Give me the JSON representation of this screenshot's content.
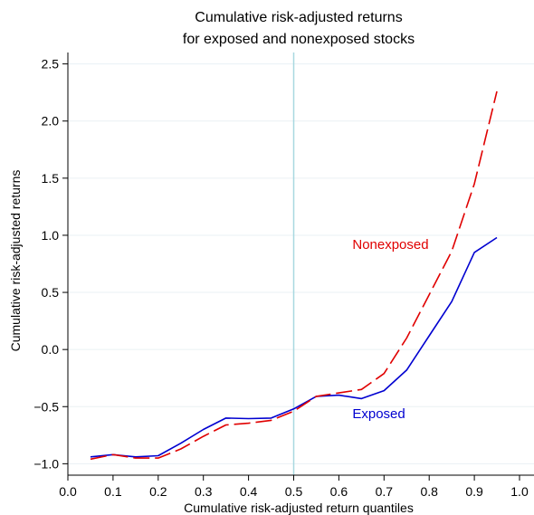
{
  "chart_data": {
    "type": "line",
    "title_lines": [
      "Cumulative risk-adjusted returns",
      "for exposed and nonexposed stocks"
    ],
    "xlabel": "Cumulative risk-adjusted return quantiles",
    "ylabel": "Cumulative risk-adjusted returns",
    "xlim": [
      0.0,
      1.0
    ],
    "ylim": [
      -1.1,
      2.6
    ],
    "xticks": [
      "0.0",
      "0.1",
      "0.2",
      "0.3",
      "0.4",
      "0.5",
      "0.6",
      "0.7",
      "0.8",
      "0.9",
      "1.0"
    ],
    "yticks": [
      "-1.0",
      "-0.5",
      "0.0",
      "0.5",
      "1.0",
      "1.5",
      "2.0",
      "2.5"
    ],
    "grid": true,
    "reference_line": {
      "x": 0.5,
      "color": "#a8d8e0"
    },
    "series": [
      {
        "name": "Exposed",
        "color": "#0000d0",
        "dash": "solid",
        "x": [
          0.05,
          0.1,
          0.15,
          0.2,
          0.25,
          0.3,
          0.35,
          0.4,
          0.45,
          0.5,
          0.55,
          0.6,
          0.65,
          0.7,
          0.75,
          0.8,
          0.85,
          0.9,
          0.95
        ],
        "y": [
          -0.94,
          -0.92,
          -0.94,
          -0.93,
          -0.82,
          -0.7,
          -0.6,
          -0.605,
          -0.6,
          -0.52,
          -0.41,
          -0.4,
          -0.43,
          -0.36,
          -0.18,
          0.12,
          0.42,
          0.85,
          0.98
        ]
      },
      {
        "name": "Nonexposed",
        "color": "#e00000",
        "dash": "dashed",
        "x": [
          0.05,
          0.1,
          0.15,
          0.2,
          0.25,
          0.3,
          0.35,
          0.4,
          0.45,
          0.5,
          0.55,
          0.6,
          0.65,
          0.7,
          0.75,
          0.8,
          0.85,
          0.9,
          0.95
        ],
        "y": [
          -0.96,
          -0.92,
          -0.95,
          -0.95,
          -0.87,
          -0.76,
          -0.66,
          -0.645,
          -0.62,
          -0.54,
          -0.41,
          -0.38,
          -0.35,
          -0.21,
          0.1,
          0.48,
          0.86,
          1.45,
          2.26
        ]
      }
    ],
    "series_labels": [
      {
        "text": "Nonexposed",
        "x": 0.63,
        "y": 0.88,
        "color": "#e00000"
      },
      {
        "text": "Exposed",
        "x": 0.63,
        "y": -0.6,
        "color": "#0000d0"
      }
    ]
  }
}
